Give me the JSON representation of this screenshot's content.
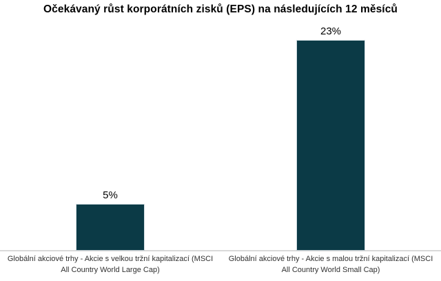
{
  "chart_data": {
    "type": "bar",
    "title": "Očekávaný růst korporátních zisků (EPS) na následujících 12 měsíců",
    "categories": [
      "Globální akciové trhy - Akcie s velkou tržní kapitalizací (MSCI All Country World Large Cap)",
      "Globální akciové trhy - Akcie s malou tržní kapitalizací (MSCI All Country World Small Cap)"
    ],
    "category_lines": [
      [
        "Globální akciové trhy - Akcie s velkou tržní kapitalizací (MSCI",
        "All Country World Large Cap)"
      ],
      [
        "Globální akciové trhy - Akcie s malou tržní kapitalizací (MSCI",
        "All Country World Small Cap)"
      ]
    ],
    "values": [
      5,
      23
    ],
    "value_labels": [
      "5%",
      "23%"
    ],
    "unit": "%",
    "xlabel": "",
    "ylabel": "",
    "ylim": [
      0,
      27.5
    ],
    "grid": false,
    "legend": false,
    "colors": {
      "bar": "#0b3a46",
      "axis_line": "#d9d9d9",
      "title_text": "#000000",
      "value_label_text": "#000000",
      "category_label_text": "#303030",
      "background": "#ffffff"
    }
  }
}
